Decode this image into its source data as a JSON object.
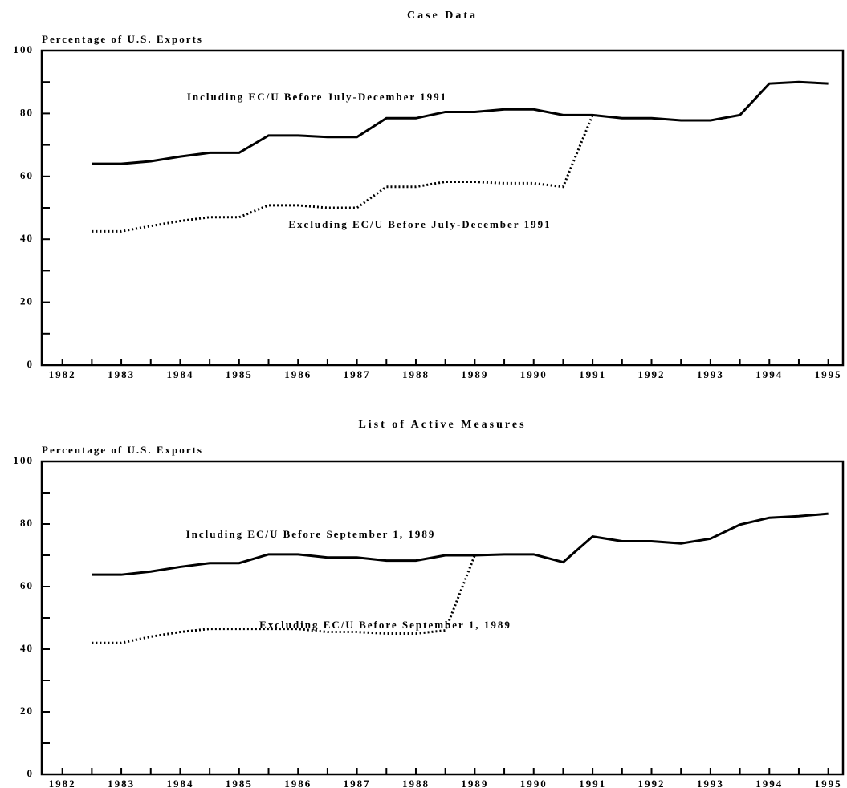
{
  "chart_data": [
    {
      "type": "line",
      "title": "Case Data",
      "y_label": "Percentage of U.S. Exports",
      "x": [
        1982.5,
        1983,
        1983.5,
        1984,
        1984.5,
        1985,
        1985.5,
        1986,
        1986.5,
        1987,
        1987.5,
        1988,
        1988.5,
        1989,
        1989.5,
        1990,
        1990.5,
        1991,
        1991.5,
        1992,
        1992.5,
        1993,
        1993.5,
        1994,
        1994.5,
        1995
      ],
      "series": [
        {
          "name": "Including EC/U Before July-December 1991",
          "color": "#000000",
          "dash": false,
          "values": [
            64,
            64,
            64.8,
            66.3,
            67.5,
            67.5,
            73,
            73,
            72.5,
            72.5,
            78.5,
            78.5,
            80.5,
            80.5,
            81.3,
            81.3,
            79.5,
            79.5,
            78.5,
            78.5,
            77.8,
            77.8,
            79.5,
            89.5,
            90,
            89.5
          ]
        },
        {
          "name": "Excluding EC/U Before July-December 1991",
          "color": "#000000",
          "dash": true,
          "values": [
            42.5,
            42.5,
            44.2,
            45.8,
            47,
            47,
            50.8,
            50.8,
            50,
            50,
            56.7,
            56.7,
            58.3,
            58.3,
            57.8,
            57.8,
            56.7,
            79.5,
            null,
            null,
            null,
            null,
            null,
            null,
            null,
            null
          ]
        }
      ],
      "xlim": [
        1981.65,
        1995.25
      ],
      "xticks": [
        1982,
        1983,
        1984,
        1985,
        1986,
        1987,
        1988,
        1989,
        1990,
        1991,
        1992,
        1993,
        1994,
        1995
      ],
      "ylim": [
        0,
        100
      ],
      "yticks": [
        0,
        20,
        40,
        60,
        80,
        100
      ]
    },
    {
      "type": "line",
      "title": "List of Active Measures",
      "y_label": "Percentage of U.S. Exports",
      "x": [
        1982.5,
        1983,
        1983.5,
        1984,
        1984.5,
        1985,
        1985.5,
        1986,
        1986.5,
        1987,
        1987.5,
        1988,
        1988.5,
        1989,
        1989.5,
        1990,
        1990.5,
        1991,
        1991.5,
        1992,
        1992.5,
        1993,
        1993.5,
        1994,
        1994.5,
        1995
      ],
      "series": [
        {
          "name": "Including EC/U Before September 1, 1989",
          "color": "#000000",
          "dash": false,
          "values": [
            63.8,
            63.8,
            64.8,
            66.3,
            67.5,
            67.5,
            70.3,
            70.3,
            69.3,
            69.3,
            68.3,
            68.3,
            70,
            70,
            70.3,
            70.3,
            67.8,
            76,
            74.5,
            74.5,
            73.8,
            75.3,
            79.8,
            82,
            82.5,
            83.3
          ]
        },
        {
          "name": "Excluding EC/U Before September 1, 1989",
          "color": "#000000",
          "dash": true,
          "values": [
            42,
            42,
            44,
            45.5,
            46.5,
            46.5,
            46.5,
            46.5,
            45.5,
            45.5,
            45,
            45,
            46,
            70,
            null,
            null,
            null,
            null,
            null,
            null,
            null,
            null,
            null,
            null,
            null,
            null
          ]
        }
      ],
      "xlim": [
        1981.65,
        1995.25
      ],
      "xticks": [
        1982,
        1983,
        1984,
        1985,
        1986,
        1987,
        1988,
        1989,
        1990,
        1991,
        1992,
        1993,
        1994,
        1995
      ],
      "ylim": [
        0,
        100
      ],
      "yticks": [
        0,
        20,
        40,
        60,
        80,
        100
      ]
    }
  ]
}
